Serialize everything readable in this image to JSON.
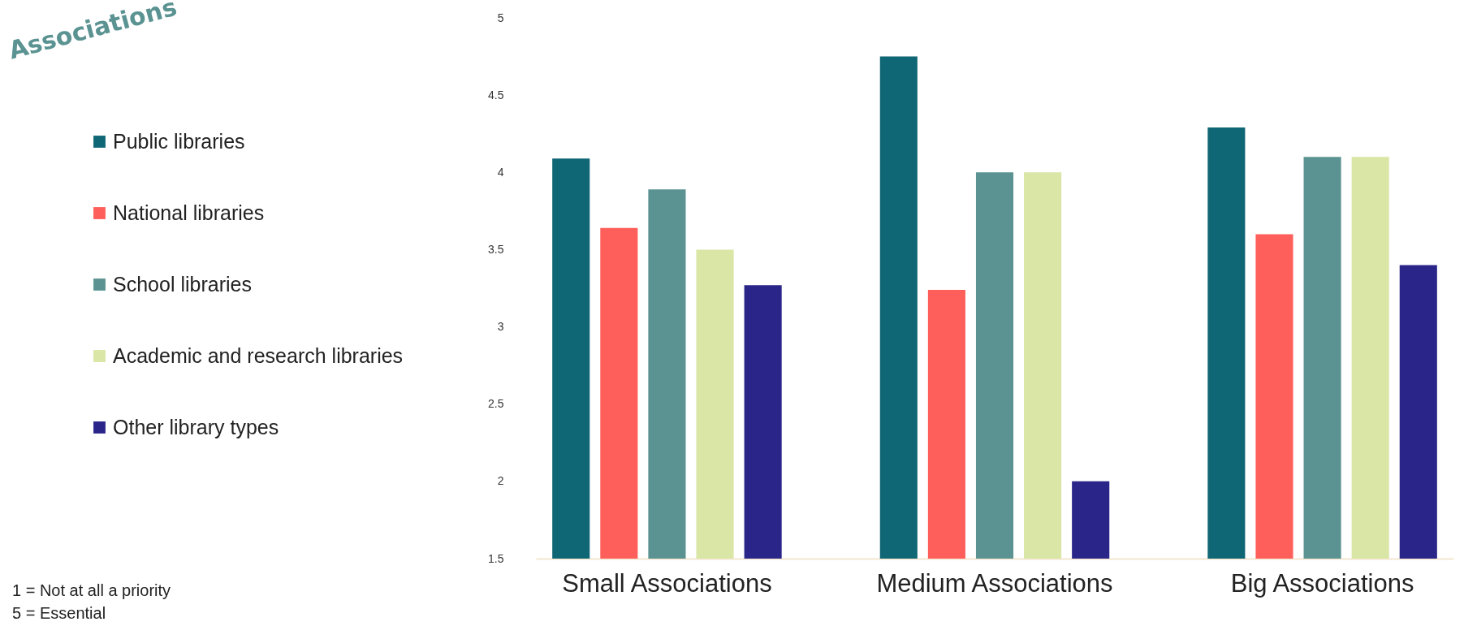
{
  "chart_data": {
    "type": "bar",
    "title": "Associations",
    "categories": [
      "Small Associations",
      "Medium Associations",
      "Big Associations"
    ],
    "series": [
      {
        "name": "Public libraries",
        "color": "#0f6674",
        "values": [
          4.09,
          4.75,
          4.29
        ]
      },
      {
        "name": "National libraries",
        "color": "#fe5f5a",
        "values": [
          3.64,
          3.24,
          3.6
        ]
      },
      {
        "name": "School libraries",
        "color": "#5a9391",
        "values": [
          3.89,
          4.0,
          4.1
        ]
      },
      {
        "name": "Academic and research libraries",
        "color": "#d9e6a5",
        "values": [
          3.5,
          4.0,
          4.1
        ]
      },
      {
        "name": "Other library types",
        "color": "#2a2589",
        "values": [
          3.27,
          2.0,
          3.4
        ]
      }
    ],
    "ylim": [
      1.5,
      5
    ],
    "yticks": [
      1.5,
      2,
      2.5,
      3,
      3.5,
      4,
      4.5,
      5
    ],
    "grid": false,
    "legend": "left",
    "annotations": [
      "1 = Not at all a priority",
      "5 = Essential"
    ]
  }
}
